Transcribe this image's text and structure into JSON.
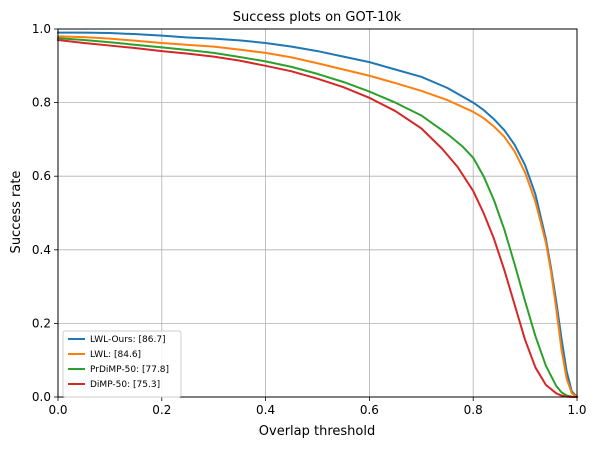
{
  "chart_data": {
    "type": "line",
    "title": "Success plots on GOT-10k",
    "xlabel": "Overlap threshold",
    "ylabel": "Success rate",
    "xlim": [
      0,
      1
    ],
    "ylim": [
      0,
      1
    ],
    "xticks": [
      "0.0",
      "0.2",
      "0.4",
      "0.6",
      "0.8",
      "1.0"
    ],
    "yticks": [
      "0.0",
      "0.2",
      "0.4",
      "0.6",
      "0.8",
      "1.0"
    ],
    "grid": true,
    "legend_position": "lower-left",
    "series": [
      {
        "name": "LWL-Ours: [86.7]",
        "color": "#1f77b4",
        "x": [
          0,
          0.05,
          0.1,
          0.15,
          0.2,
          0.25,
          0.3,
          0.35,
          0.4,
          0.45,
          0.5,
          0.55,
          0.6,
          0.65,
          0.7,
          0.75,
          0.8,
          0.82,
          0.84,
          0.86,
          0.88,
          0.9,
          0.92,
          0.94,
          0.95,
          0.96,
          0.97,
          0.98,
          0.99,
          1.0
        ],
        "y": [
          0.99,
          0.99,
          0.989,
          0.986,
          0.982,
          0.977,
          0.974,
          0.969,
          0.962,
          0.952,
          0.94,
          0.925,
          0.91,
          0.89,
          0.87,
          0.84,
          0.8,
          0.78,
          0.755,
          0.725,
          0.685,
          0.63,
          0.55,
          0.43,
          0.35,
          0.26,
          0.16,
          0.07,
          0.015,
          0.0
        ]
      },
      {
        "name": "LWL: [84.6]",
        "color": "#ff7f0e",
        "x": [
          0,
          0.05,
          0.1,
          0.15,
          0.2,
          0.25,
          0.3,
          0.35,
          0.4,
          0.45,
          0.5,
          0.55,
          0.6,
          0.65,
          0.7,
          0.75,
          0.8,
          0.82,
          0.84,
          0.86,
          0.88,
          0.9,
          0.92,
          0.94,
          0.95,
          0.96,
          0.97,
          0.98,
          0.99,
          1.0
        ],
        "y": [
          0.98,
          0.978,
          0.974,
          0.968,
          0.962,
          0.957,
          0.952,
          0.944,
          0.935,
          0.923,
          0.907,
          0.89,
          0.873,
          0.853,
          0.832,
          0.807,
          0.775,
          0.758,
          0.735,
          0.707,
          0.667,
          0.61,
          0.53,
          0.42,
          0.34,
          0.24,
          0.13,
          0.05,
          0.01,
          0.0
        ]
      },
      {
        "name": "PrDiMP-50: [77.8]",
        "color": "#2ca02c",
        "x": [
          0,
          0.05,
          0.1,
          0.15,
          0.2,
          0.25,
          0.3,
          0.35,
          0.4,
          0.45,
          0.5,
          0.55,
          0.6,
          0.65,
          0.7,
          0.75,
          0.78,
          0.8,
          0.82,
          0.84,
          0.86,
          0.88,
          0.9,
          0.92,
          0.94,
          0.96,
          0.97,
          0.98,
          0.99,
          1.0
        ],
        "y": [
          0.975,
          0.97,
          0.964,
          0.957,
          0.95,
          0.943,
          0.935,
          0.924,
          0.912,
          0.897,
          0.878,
          0.856,
          0.83,
          0.8,
          0.765,
          0.715,
          0.68,
          0.65,
          0.6,
          0.535,
          0.455,
          0.36,
          0.26,
          0.165,
          0.085,
          0.03,
          0.013,
          0.004,
          0.001,
          0.0
        ]
      },
      {
        "name": "DiMP-50: [75.3]",
        "color": "#d62728",
        "x": [
          0,
          0.05,
          0.1,
          0.15,
          0.2,
          0.25,
          0.3,
          0.35,
          0.4,
          0.45,
          0.5,
          0.55,
          0.6,
          0.65,
          0.7,
          0.74,
          0.77,
          0.8,
          0.82,
          0.84,
          0.86,
          0.88,
          0.9,
          0.92,
          0.94,
          0.96,
          0.97,
          0.98,
          0.99,
          1.0
        ],
        "y": [
          0.97,
          0.962,
          0.955,
          0.948,
          0.94,
          0.933,
          0.925,
          0.914,
          0.9,
          0.885,
          0.865,
          0.842,
          0.813,
          0.777,
          0.73,
          0.675,
          0.625,
          0.56,
          0.5,
          0.43,
          0.345,
          0.25,
          0.155,
          0.08,
          0.033,
          0.01,
          0.004,
          0.001,
          0.0,
          0.0
        ]
      }
    ]
  }
}
